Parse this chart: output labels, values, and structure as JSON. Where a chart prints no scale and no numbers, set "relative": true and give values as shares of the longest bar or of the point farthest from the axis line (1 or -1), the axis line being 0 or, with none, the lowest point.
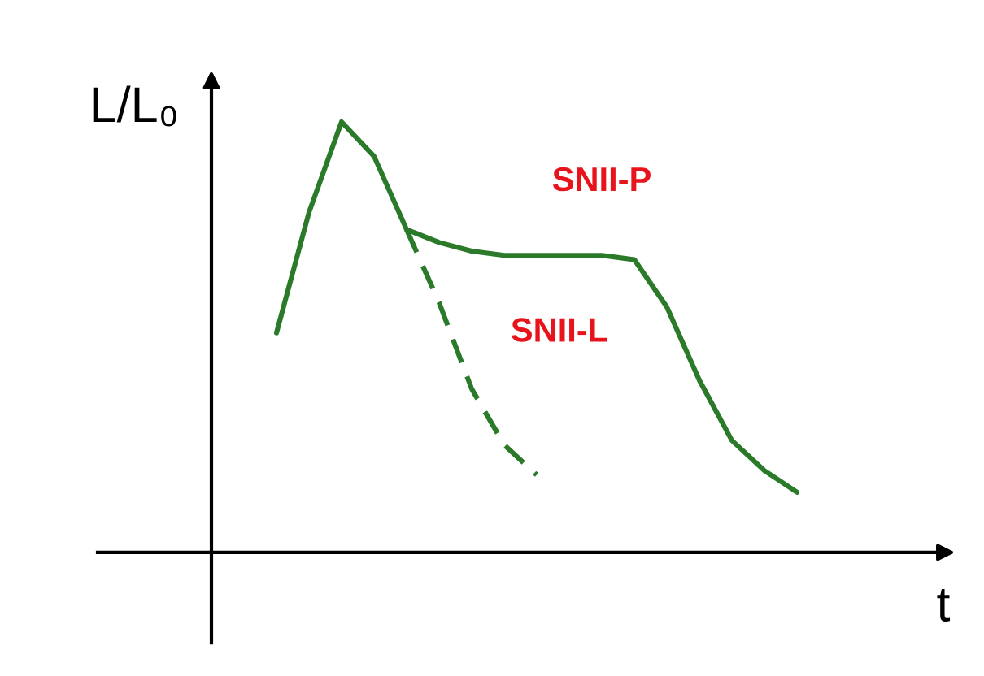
{
  "chart_data": {
    "type": "line",
    "relative": true,
    "xlabel": "t",
    "ylabel": "L/L₀",
    "legend": false,
    "marker": "none",
    "categories": [
      null,
      null,
      null,
      null,
      null,
      null,
      null,
      null,
      null,
      null,
      null,
      null,
      null,
      null,
      null,
      null,
      null
    ],
    "series": [
      {
        "name": "SNII-P",
        "color": "#2a7a2a",
        "line_style": "solid",
        "values": [
          0.51,
          0.79,
          1.0,
          0.92,
          0.75,
          0.72,
          0.7,
          0.69,
          0.69,
          0.69,
          0.69,
          0.68,
          0.57,
          0.4,
          0.26,
          0.19,
          0.14
        ]
      },
      {
        "name": "SNII-L",
        "color": "#2a7a2a",
        "line_style": "dashed",
        "values": [
          null,
          null,
          null,
          null,
          0.75,
          0.58,
          0.38,
          0.25,
          0.18,
          null,
          null,
          null,
          null,
          null,
          null,
          null,
          null
        ]
      }
    ]
  }
}
